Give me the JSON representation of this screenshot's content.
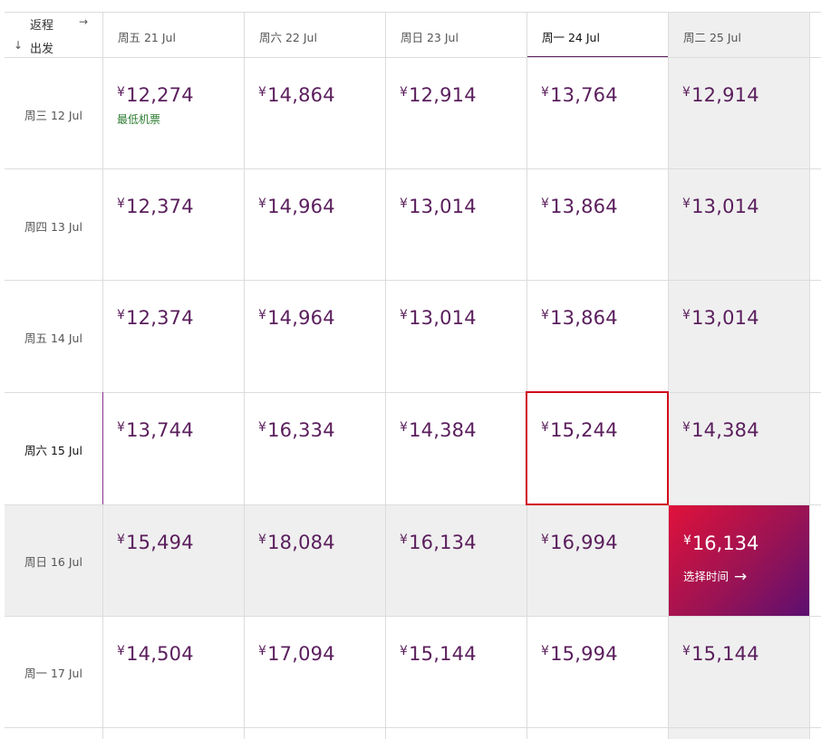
{
  "corner": {
    "return_label": "返程",
    "return_arrow": "→",
    "depart_arrow": "↓",
    "depart_label": "出发"
  },
  "return_dates": [
    "周五 21 Jul",
    "周六 22 Jul",
    "周日 23 Jul",
    "周一 24 Jul",
    "周二 25 Jul"
  ],
  "depart_dates": [
    "周三 12 Jul",
    "周四 13 Jul",
    "周五 14 Jul",
    "周六 15 Jul",
    "周日 16 Jul",
    "周一 17 Jul"
  ],
  "currency_symbol": "¥",
  "prices": [
    [
      "12,274",
      "14,864",
      "12,914",
      "13,764",
      "12,914"
    ],
    [
      "12,374",
      "14,964",
      "13,014",
      "13,864",
      "13,014"
    ],
    [
      "12,374",
      "14,964",
      "13,014",
      "13,864",
      "13,014"
    ],
    [
      "13,744",
      "16,334",
      "14,384",
      "15,244",
      "14,384"
    ],
    [
      "15,494",
      "18,084",
      "16,134",
      "16,994",
      "16,134"
    ],
    [
      "14,504",
      "17,094",
      "15,144",
      "15,994",
      "15,144"
    ]
  ],
  "lowest_fare_note": "最低机票",
  "select_time_label": "选择时间",
  "select_time_arrow": "→",
  "colors": {
    "price": "#5a1e5c",
    "lowest_note": "#2e7d32",
    "focus_border": "#d0021b",
    "highlight_start": "#e0123a",
    "highlight_end": "#5c0f70"
  }
}
